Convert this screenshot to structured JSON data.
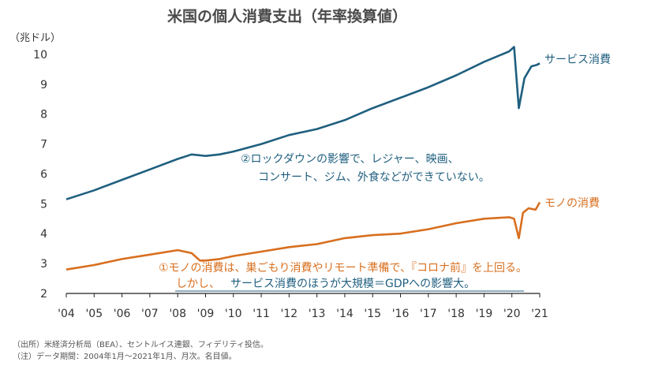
{
  "chart_data": {
    "type": "line",
    "title": "米国の個人消費支出（年率換算値）",
    "ylabel": "（兆ドル）",
    "ylim": [
      2,
      10.5
    ],
    "yticks": [
      2,
      3,
      4,
      5,
      6,
      7,
      8,
      9,
      10
    ],
    "xlim": [
      2004.0,
      2021.0
    ],
    "xtick_labels": [
      "'04",
      "'05",
      "'06",
      "'07",
      "'08",
      "'09",
      "'10",
      "'11",
      "'12",
      "'13",
      "'14",
      "'15",
      "'16",
      "'17",
      "'18",
      "'19",
      "'20",
      "'21"
    ],
    "grid": false,
    "series": [
      {
        "name": "サービス消費",
        "color": "#1f5f7f",
        "points": [
          [
            2004.0,
            5.15
          ],
          [
            2005.0,
            5.45
          ],
          [
            2006.0,
            5.8
          ],
          [
            2007.0,
            6.15
          ],
          [
            2008.0,
            6.5
          ],
          [
            2008.5,
            6.65
          ],
          [
            2009.0,
            6.6
          ],
          [
            2009.5,
            6.65
          ],
          [
            2010.0,
            6.75
          ],
          [
            2011.0,
            7.0
          ],
          [
            2012.0,
            7.3
          ],
          [
            2013.0,
            7.5
          ],
          [
            2014.0,
            7.8
          ],
          [
            2015.0,
            8.2
          ],
          [
            2016.0,
            8.55
          ],
          [
            2017.0,
            8.9
          ],
          [
            2018.0,
            9.3
          ],
          [
            2019.0,
            9.75
          ],
          [
            2019.9,
            10.1
          ],
          [
            2020.08,
            10.25
          ],
          [
            2020.25,
            8.2
          ],
          [
            2020.45,
            9.2
          ],
          [
            2020.7,
            9.6
          ],
          [
            2020.9,
            9.65
          ],
          [
            2021.0,
            9.7
          ]
        ]
      },
      {
        "name": "モノの消費",
        "color": "#d86f1f",
        "points": [
          [
            2004.0,
            2.8
          ],
          [
            2005.0,
            2.95
          ],
          [
            2006.0,
            3.15
          ],
          [
            2007.0,
            3.3
          ],
          [
            2008.0,
            3.45
          ],
          [
            2008.5,
            3.35
          ],
          [
            2008.8,
            3.1
          ],
          [
            2009.0,
            3.1
          ],
          [
            2009.5,
            3.15
          ],
          [
            2010.0,
            3.25
          ],
          [
            2011.0,
            3.4
          ],
          [
            2012.0,
            3.55
          ],
          [
            2013.0,
            3.65
          ],
          [
            2014.0,
            3.85
          ],
          [
            2015.0,
            3.95
          ],
          [
            2016.0,
            4.0
          ],
          [
            2017.0,
            4.15
          ],
          [
            2018.0,
            4.35
          ],
          [
            2019.0,
            4.5
          ],
          [
            2019.9,
            4.55
          ],
          [
            2020.08,
            4.5
          ],
          [
            2020.25,
            3.85
          ],
          [
            2020.4,
            4.7
          ],
          [
            2020.6,
            4.85
          ],
          [
            2020.85,
            4.8
          ],
          [
            2021.0,
            5.05
          ]
        ]
      }
    ],
    "annotations": [
      "②ロックダウンの影響で、レジャー、映画、",
      "コンサート、ジム、外食などができていない。",
      "①モノの消費は、巣ごもり消費やリモート準備で、『コロナ前』を上回る。",
      "しかし、",
      "サービス消費のほうが大規模＝GDPへの影響大。"
    ]
  },
  "footnotes": [
    "（出所）米経済分析局（BEA）、セントルイス連銀、フィデリティ投信。",
    "（注）データ期間：2004年1月～2021年1月、月次。名目値。"
  ]
}
